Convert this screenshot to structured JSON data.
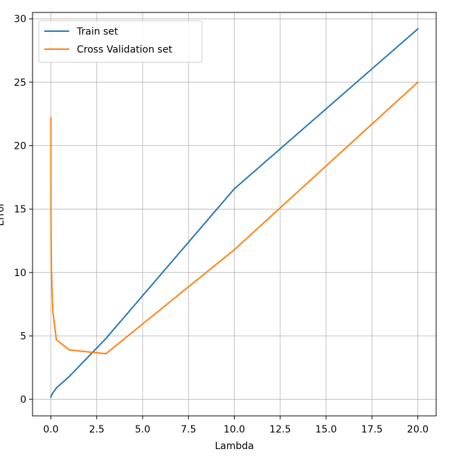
{
  "chart_data": {
    "type": "line",
    "title": "",
    "xlabel": "Lambda",
    "ylabel": "Error",
    "xlim": [
      -1.0,
      21.0
    ],
    "ylim": [
      -1.3,
      30.5
    ],
    "grid": true,
    "legend_position": "top-left",
    "xticks": [
      0.0,
      2.5,
      5.0,
      7.5,
      10.0,
      12.5,
      15.0,
      17.5,
      20.0
    ],
    "xtick_labels": [
      "0.0",
      "2.5",
      "5.0",
      "7.5",
      "10.0",
      "12.5",
      "15.0",
      "17.5",
      "20.0"
    ],
    "yticks": [
      0,
      5,
      10,
      15,
      20,
      25,
      30
    ],
    "ytick_labels": [
      "0",
      "5",
      "10",
      "15",
      "20",
      "25",
      "30"
    ],
    "x": [
      0,
      0.001,
      0.003,
      0.01,
      0.03,
      0.1,
      0.3,
      1,
      3,
      10,
      20
    ],
    "series": [
      {
        "name": "Train set",
        "color": "#1f77b4",
        "values": [
          0.18,
          0.2,
          0.22,
          0.25,
          0.3,
          0.5,
          0.9,
          1.8,
          4.8,
          16.6,
          29.2
        ]
      },
      {
        "name": "Cross Validation set",
        "color": "#ff7f0e",
        "values": [
          22.2,
          18.5,
          15.5,
          12.5,
          10.2,
          7.0,
          4.7,
          3.9,
          3.6,
          11.8,
          25.0
        ]
      }
    ]
  }
}
